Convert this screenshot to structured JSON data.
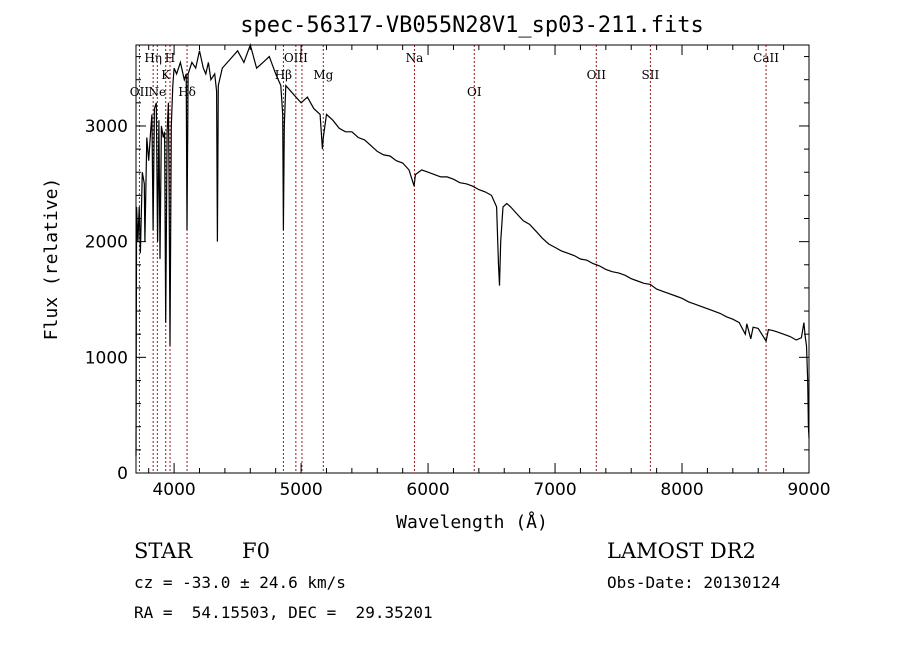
{
  "chart_data": {
    "type": "line",
    "title": "spec-56317-VB055N28V1_sp03-211.fits",
    "xlabel": "Wavelength (Å)",
    "ylabel": "Flux (relative)",
    "xlim": [
      3700,
      9000
    ],
    "ylim": [
      0,
      3700
    ],
    "x_ticks": [
      4000,
      5000,
      6000,
      7000,
      8000,
      9000
    ],
    "y_ticks": [
      0,
      1000,
      2000,
      3000
    ],
    "grid": false,
    "series": [
      {
        "points": [
          [
            3700,
            150
          ],
          [
            3705,
            2300
          ],
          [
            3715,
            2000
          ],
          [
            3725,
            2300
          ],
          [
            3735,
            1900
          ],
          [
            3750,
            2600
          ],
          [
            3765,
            2500
          ],
          [
            3770,
            2000
          ],
          [
            3785,
            2900
          ],
          [
            3800,
            2700
          ],
          [
            3815,
            2950
          ],
          [
            3825,
            3100
          ],
          [
            3835,
            2100
          ],
          [
            3845,
            3150
          ],
          [
            3860,
            3200
          ],
          [
            3870,
            2000
          ],
          [
            3880,
            3050
          ],
          [
            3889,
            1850
          ],
          [
            3900,
            3000
          ],
          [
            3915,
            2900
          ],
          [
            3925,
            2950
          ],
          [
            3934,
            1300
          ],
          [
            3945,
            2950
          ],
          [
            3955,
            3200
          ],
          [
            3960,
            2600
          ],
          [
            3968,
            1100
          ],
          [
            3978,
            3000
          ],
          [
            3990,
            3350
          ],
          [
            4000,
            3500
          ],
          [
            4020,
            3450
          ],
          [
            4050,
            3550
          ],
          [
            4080,
            3400
          ],
          [
            4095,
            3450
          ],
          [
            4102,
            2100
          ],
          [
            4110,
            3450
          ],
          [
            4140,
            3550
          ],
          [
            4170,
            3500
          ],
          [
            4200,
            3650
          ],
          [
            4230,
            3500
          ],
          [
            4250,
            3450
          ],
          [
            4270,
            3550
          ],
          [
            4290,
            3400
          ],
          [
            4320,
            3450
          ],
          [
            4335,
            3300
          ],
          [
            4341,
            2000
          ],
          [
            4348,
            3350
          ],
          [
            4380,
            3500
          ],
          [
            4420,
            3550
          ],
          [
            4460,
            3600
          ],
          [
            4500,
            3650
          ],
          [
            4550,
            3550
          ],
          [
            4600,
            3700
          ],
          [
            4650,
            3500
          ],
          [
            4700,
            3550
          ],
          [
            4750,
            3600
          ],
          [
            4800,
            3450
          ],
          [
            4840,
            3350
          ],
          [
            4855,
            3100
          ],
          [
            4861,
            2100
          ],
          [
            4868,
            3000
          ],
          [
            4880,
            3350
          ],
          [
            4920,
            3300
          ],
          [
            4960,
            3250
          ],
          [
            5000,
            3200
          ],
          [
            5050,
            3250
          ],
          [
            5100,
            3150
          ],
          [
            5150,
            3100
          ],
          [
            5168,
            2800
          ],
          [
            5175,
            2900
          ],
          [
            5200,
            3100
          ],
          [
            5250,
            3050
          ],
          [
            5300,
            2980
          ],
          [
            5350,
            2950
          ],
          [
            5400,
            2950
          ],
          [
            5450,
            2900
          ],
          [
            5500,
            2880
          ],
          [
            5550,
            2830
          ],
          [
            5600,
            2780
          ],
          [
            5650,
            2750
          ],
          [
            5700,
            2740
          ],
          [
            5750,
            2700
          ],
          [
            5800,
            2680
          ],
          [
            5850,
            2620
          ],
          [
            5890,
            2480
          ],
          [
            5900,
            2580
          ],
          [
            5950,
            2620
          ],
          [
            6000,
            2600
          ],
          [
            6050,
            2580
          ],
          [
            6100,
            2560
          ],
          [
            6150,
            2560
          ],
          [
            6200,
            2540
          ],
          [
            6250,
            2510
          ],
          [
            6300,
            2500
          ],
          [
            6350,
            2480
          ],
          [
            6400,
            2450
          ],
          [
            6450,
            2430
          ],
          [
            6500,
            2400
          ],
          [
            6540,
            2300
          ],
          [
            6555,
            1800
          ],
          [
            6563,
            1620
          ],
          [
            6572,
            2000
          ],
          [
            6590,
            2300
          ],
          [
            6620,
            2330
          ],
          [
            6650,
            2300
          ],
          [
            6700,
            2240
          ],
          [
            6750,
            2180
          ],
          [
            6800,
            2150
          ],
          [
            6850,
            2090
          ],
          [
            6900,
            2030
          ],
          [
            6950,
            1980
          ],
          [
            7000,
            1950
          ],
          [
            7050,
            1920
          ],
          [
            7100,
            1900
          ],
          [
            7150,
            1880
          ],
          [
            7200,
            1850
          ],
          [
            7250,
            1840
          ],
          [
            7300,
            1810
          ],
          [
            7350,
            1790
          ],
          [
            7400,
            1760
          ],
          [
            7450,
            1740
          ],
          [
            7500,
            1730
          ],
          [
            7550,
            1710
          ],
          [
            7600,
            1680
          ],
          [
            7650,
            1660
          ],
          [
            7700,
            1640
          ],
          [
            7750,
            1630
          ],
          [
            7800,
            1590
          ],
          [
            7850,
            1570
          ],
          [
            7900,
            1550
          ],
          [
            7950,
            1530
          ],
          [
            8000,
            1510
          ],
          [
            8050,
            1480
          ],
          [
            8100,
            1460
          ],
          [
            8150,
            1440
          ],
          [
            8200,
            1420
          ],
          [
            8250,
            1400
          ],
          [
            8300,
            1380
          ],
          [
            8350,
            1350
          ],
          [
            8400,
            1330
          ],
          [
            8450,
            1300
          ],
          [
            8498,
            1200
          ],
          [
            8510,
            1290
          ],
          [
            8542,
            1160
          ],
          [
            8560,
            1260
          ],
          [
            8600,
            1250
          ],
          [
            8662,
            1140
          ],
          [
            8680,
            1240
          ],
          [
            8720,
            1230
          ],
          [
            8750,
            1220
          ],
          [
            8800,
            1200
          ],
          [
            8850,
            1180
          ],
          [
            8900,
            1150
          ],
          [
            8940,
            1170
          ],
          [
            8960,
            1300
          ],
          [
            8970,
            1180
          ],
          [
            8980,
            1100
          ],
          [
            8990,
            800
          ],
          [
            8995,
            400
          ],
          [
            9000,
            300
          ]
        ]
      }
    ],
    "line_markers": [
      {
        "wavelength": 3727,
        "label": "OII",
        "row": 3
      },
      {
        "wavelength": 3835,
        "label": "Hη",
        "row": 1
      },
      {
        "wavelength": 3868,
        "label": "Ne",
        "row": 3
      },
      {
        "wavelength": 3934,
        "label": "K",
        "row": 2
      },
      {
        "wavelength": 3968,
        "label": "H",
        "row": 1
      },
      {
        "wavelength": 4102,
        "label": "Hδ",
        "row": 3
      },
      {
        "wavelength": 4861,
        "label": "Hβ",
        "row": 2
      },
      {
        "wavelength": 4959,
        "label": "OIII",
        "row": 1
      },
      {
        "wavelength": 5007,
        "label": "",
        "row": 1
      },
      {
        "wavelength": 5175,
        "label": "Mg",
        "row": 2
      },
      {
        "wavelength": 5893,
        "label": "Na",
        "row": 1
      },
      {
        "wavelength": 6364,
        "label": "OI",
        "row": 3
      },
      {
        "wavelength": 7325,
        "label": "OII",
        "row": 2
      },
      {
        "wavelength": 7751,
        "label": "SII",
        "row": 2
      },
      {
        "wavelength": 8662,
        "label": "CaII",
        "row": 1
      }
    ]
  },
  "footer": {
    "object_class": "STAR",
    "subclass": "F0",
    "survey": "LAMOST DR2",
    "redshift": "cz = -33.0 ± 24.6 km/s",
    "obs_date": "Obs-Date: 20130124",
    "coords": "RA =  54.15503, DEC =  29.35201"
  }
}
